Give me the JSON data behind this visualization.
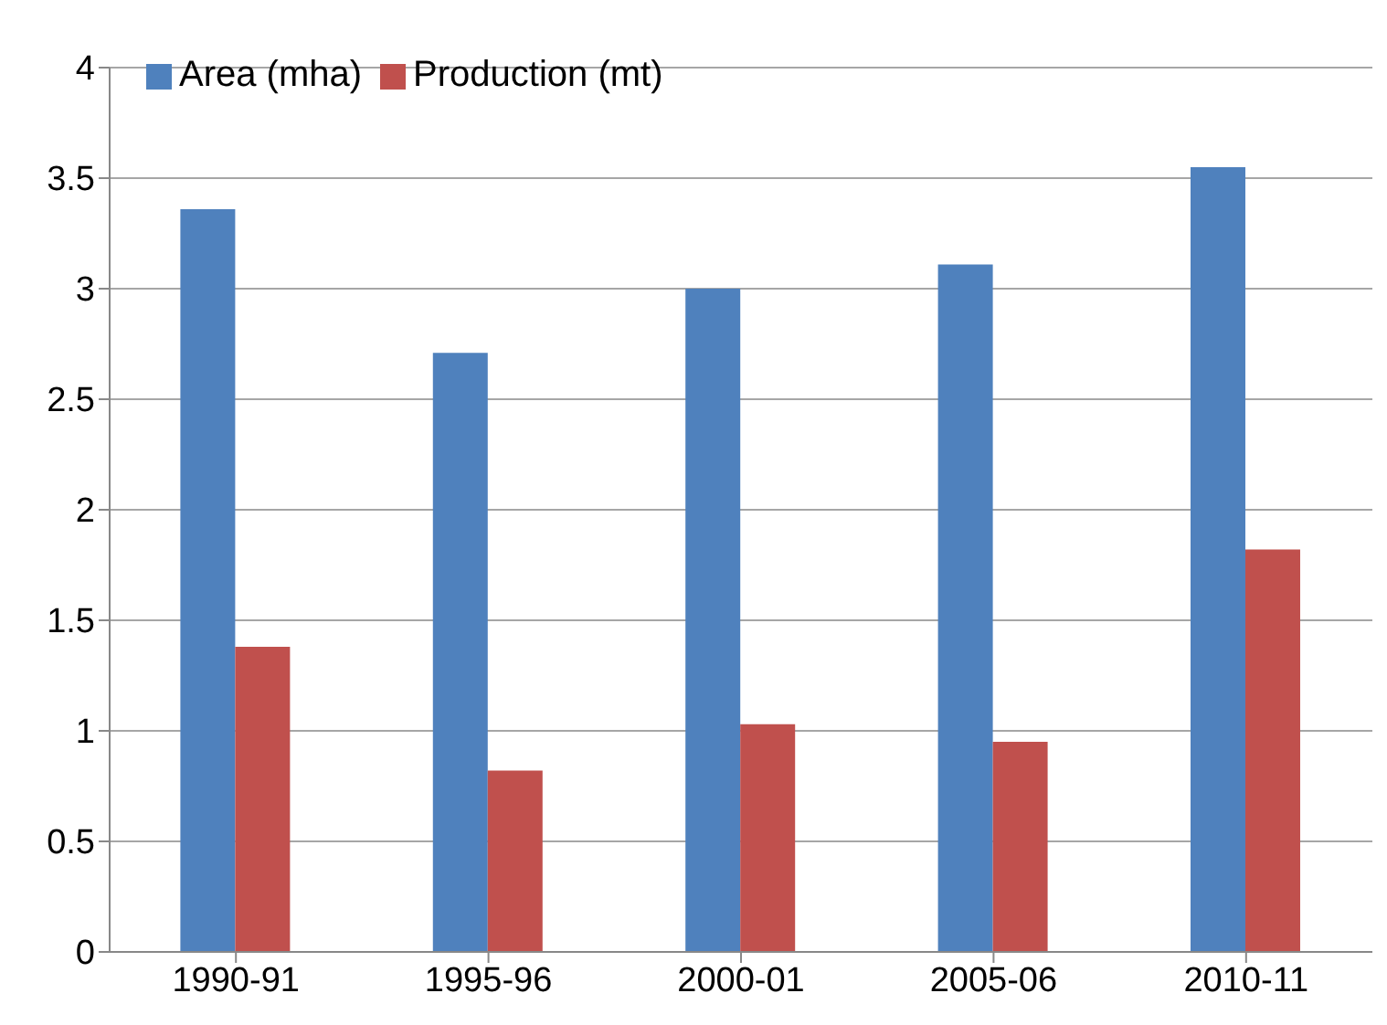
{
  "chart_data": {
    "type": "bar",
    "categories": [
      "1990-91",
      "1995-96",
      "2000-01",
      "2005-06",
      "2010-11"
    ],
    "series": [
      {
        "name": "Area (mha)",
        "color": "#4f81bd",
        "values": [
          3.36,
          2.71,
          3.0,
          3.11,
          3.55
        ]
      },
      {
        "name": "Production (mt)",
        "color": "#c0504d",
        "values": [
          1.38,
          0.82,
          1.03,
          0.95,
          1.82
        ]
      }
    ],
    "ylim": [
      0,
      4
    ],
    "yticks": [
      0,
      0.5,
      1,
      1.5,
      2,
      2.5,
      3,
      3.5,
      4
    ],
    "grid": "y",
    "legend": "top left"
  }
}
